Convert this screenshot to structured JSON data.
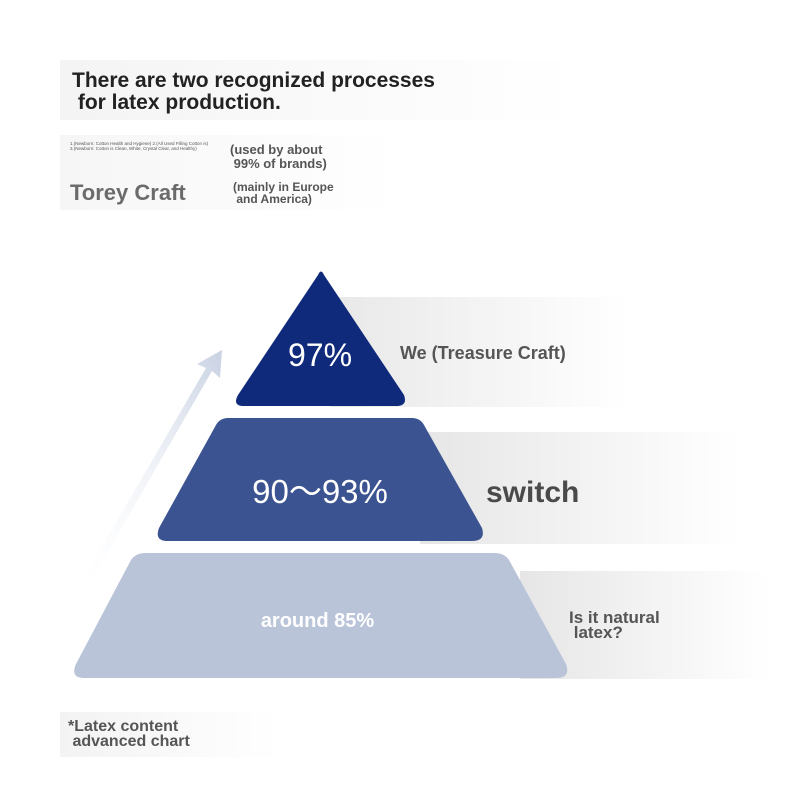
{
  "header": {
    "headline_line1": "There are two recognized processes",
    "headline_line2": " for latex production.",
    "small_print_line1": "1.(Newborn: Cotton Health and Hygiene) 2.(All Used Filling Cotton is)",
    "small_print_line2": "3.(Newborn: Cotton is Clean, White, Crystal Clear, and Healthy)",
    "used_by_line1": "(used by about",
    "used_by_line2": " 99% of brands)",
    "torey_craft": "Torey Craft",
    "mainly_line1": "(mainly in Europe",
    "mainly_line2": " and America)"
  },
  "pyramid": {
    "tiers": [
      {
        "value": "97%",
        "label": "We (Treasure Craft)",
        "color": "#0f2a7a",
        "text_color": "#ffffff"
      },
      {
        "value": "90～93%",
        "label": "switch",
        "color": "#3b5390",
        "text_color": "#ffffff"
      },
      {
        "value": "around 85%",
        "label_line1": "Is it natural",
        "label_line2": " latex?",
        "color": "#b9c4d9",
        "text_color": "#ffffff"
      }
    ]
  },
  "footnote": {
    "line1": "*Latex content",
    "line2": " advanced chart"
  }
}
